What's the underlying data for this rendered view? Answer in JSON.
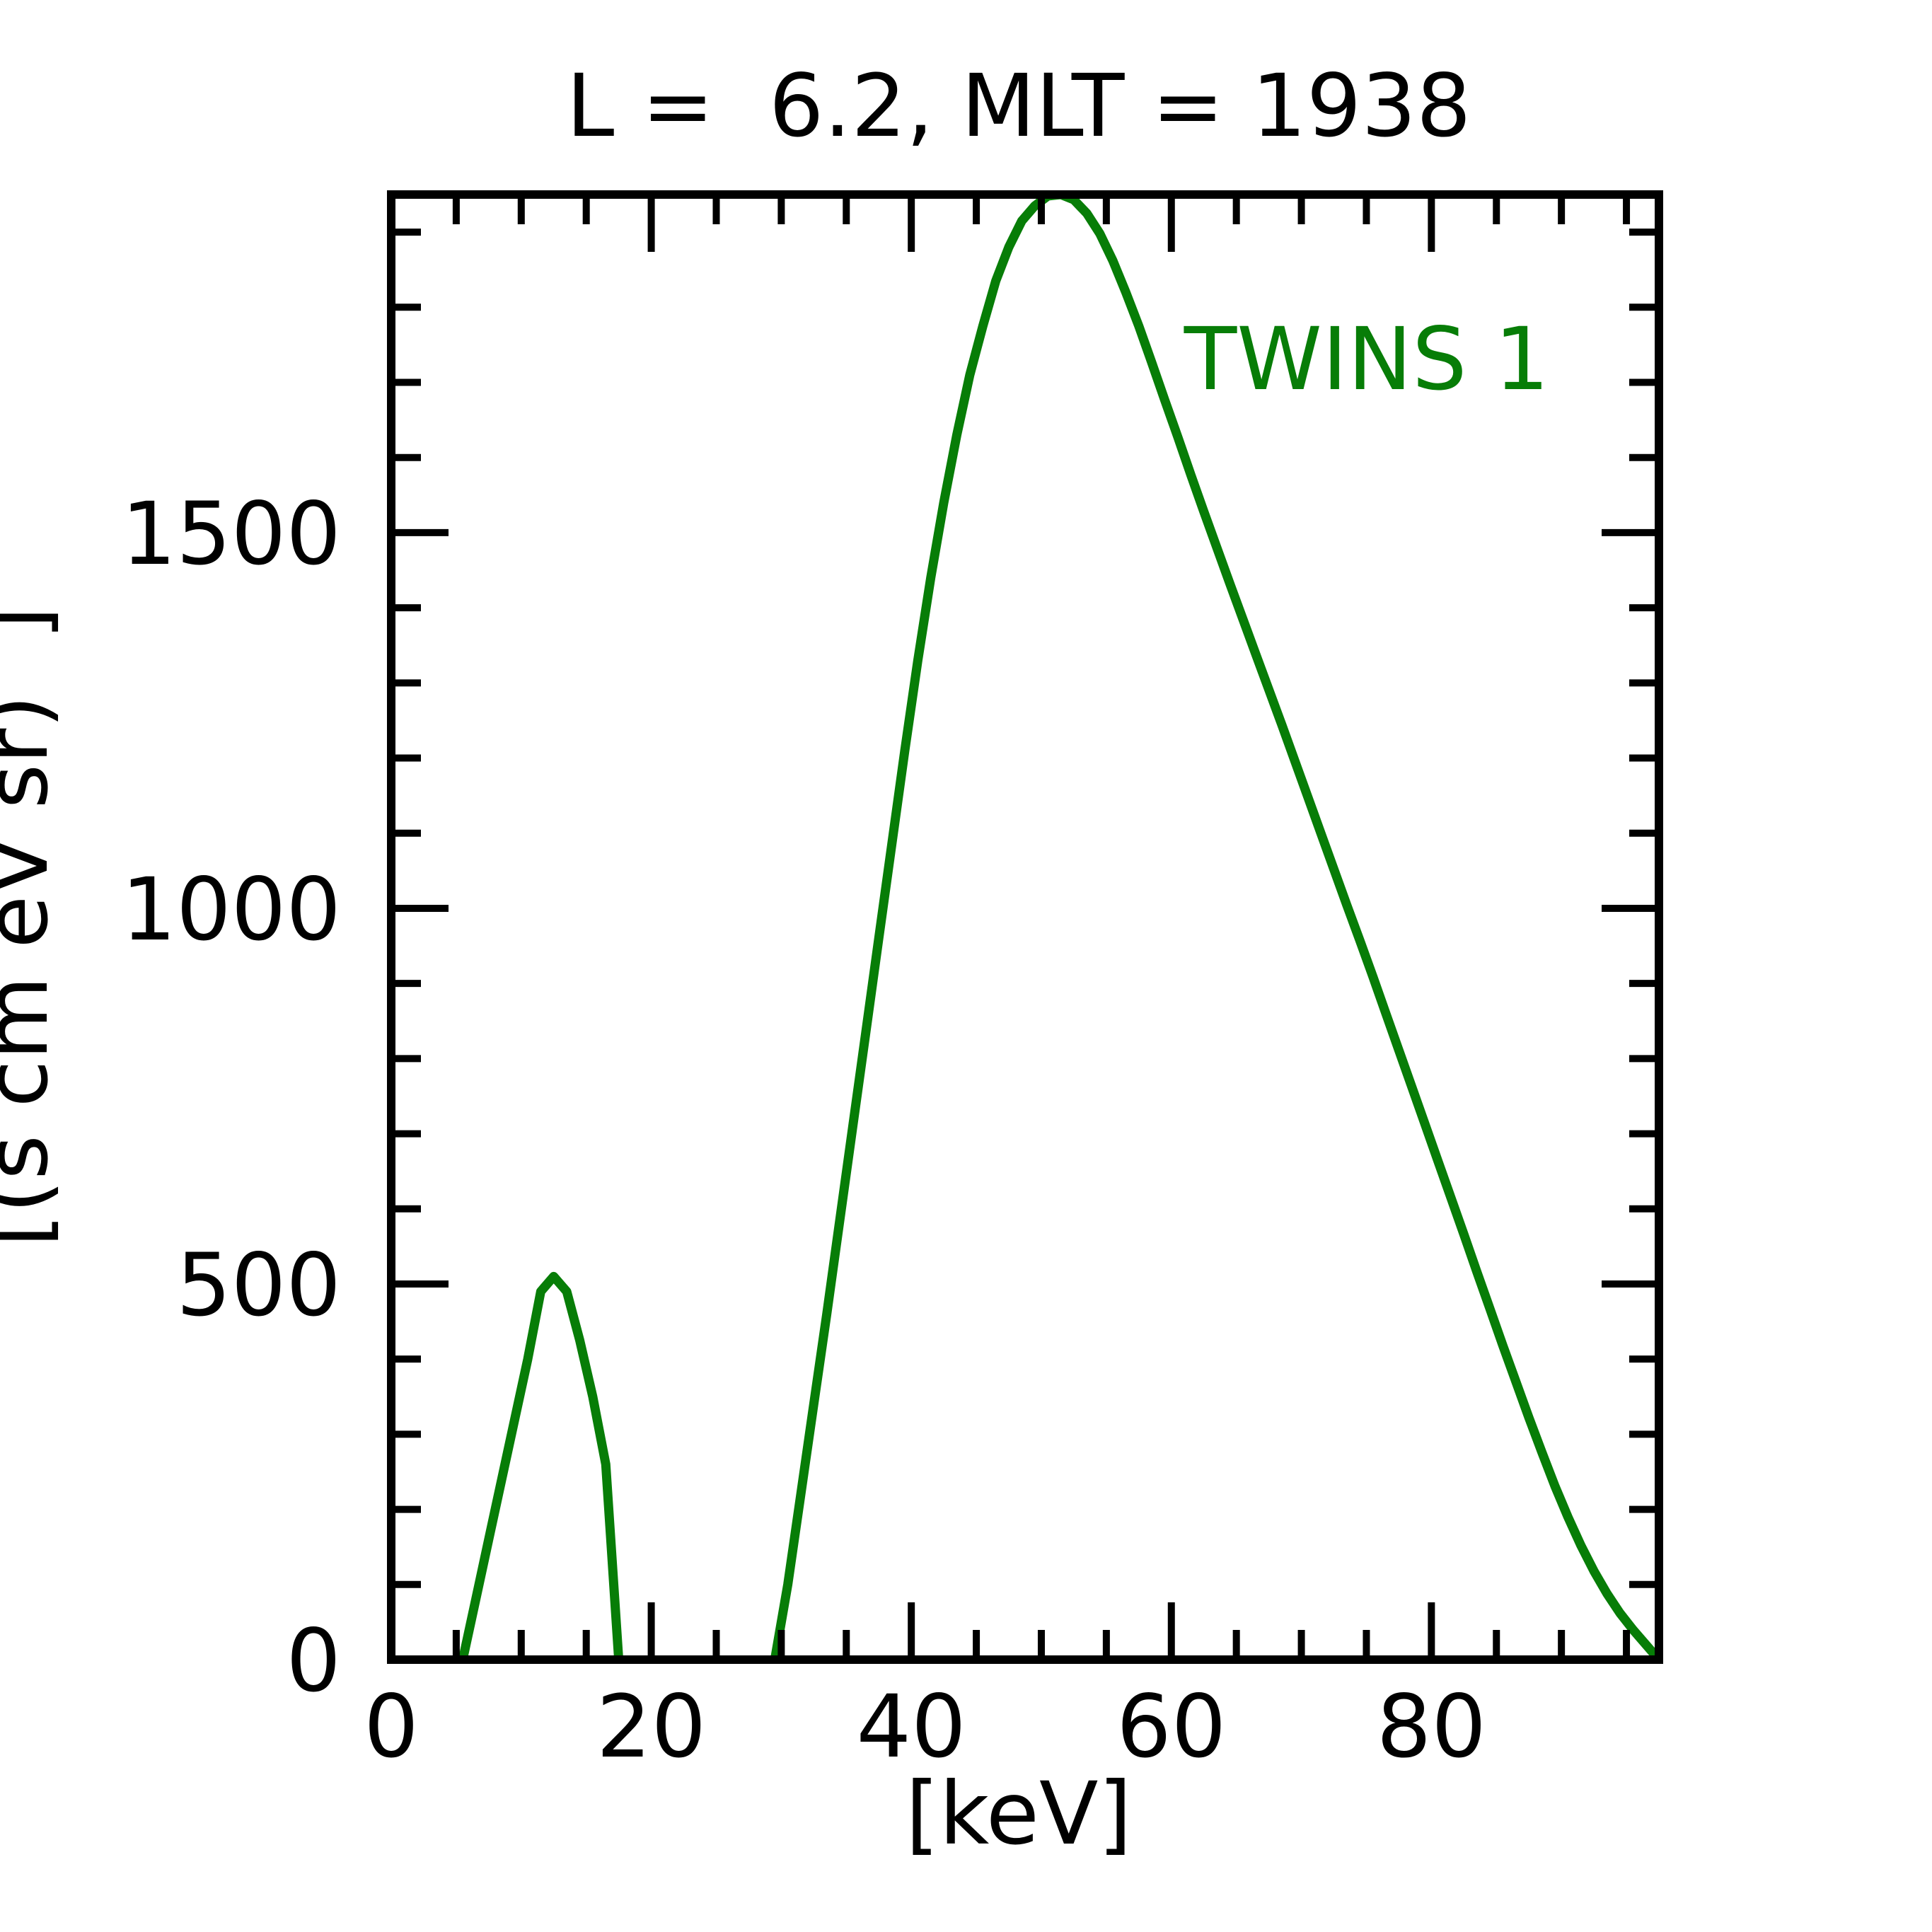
{
  "chart_data": {
    "type": "line",
    "title": "L =  6.2, MLT = 1938",
    "xlabel": "[keV]",
    "ylabel": "[(s cm eV sr)  ]",
    "xlim": [
      0,
      97.5
    ],
    "ylim": [
      0,
      1950
    ],
    "x_ticks": [
      0,
      20,
      40,
      60,
      80
    ],
    "y_ticks": [
      0,
      500,
      1000,
      1500
    ],
    "grid": false,
    "legend": "top-right",
    "colors": {
      "series": "#077d07",
      "axes": "#000000"
    },
    "series": [
      {
        "name": "TWINS 1",
        "segments": [
          [
            [
              5.5,
              0
            ],
            [
              6.5,
              80
            ],
            [
              7.5,
              160
            ],
            [
              8.5,
              240
            ],
            [
              9.5,
              320
            ],
            [
              10.5,
              400
            ],
            [
              11.5,
              490
            ],
            [
              12.5,
              510
            ],
            [
              13.5,
              490
            ],
            [
              14.5,
              425
            ],
            [
              15.5,
              350
            ],
            [
              16.5,
              260
            ],
            [
              17.5,
              0
            ]
          ],
          [
            [
              29.5,
              0
            ],
            [
              30.5,
              100
            ],
            [
              31.5,
              220
            ],
            [
              32.5,
              340
            ],
            [
              33.5,
              460
            ],
            [
              34.5,
              585
            ],
            [
              35.5,
              710
            ],
            [
              36.5,
              835
            ],
            [
              37.5,
              960
            ],
            [
              38.5,
              1085
            ],
            [
              39.5,
              1210
            ],
            [
              40.5,
              1330
            ],
            [
              41.5,
              1440
            ],
            [
              42.5,
              1540
            ],
            [
              43.5,
              1630
            ],
            [
              44.5,
              1710
            ],
            [
              45.5,
              1775
            ],
            [
              46.5,
              1835
            ],
            [
              47.5,
              1880
            ],
            [
              48.5,
              1915
            ],
            [
              49.5,
              1935
            ],
            [
              50.5,
              1948
            ],
            [
              51.5,
              1950
            ],
            [
              52.5,
              1943
            ],
            [
              53.5,
              1925
            ],
            [
              54.5,
              1898
            ],
            [
              55.5,
              1862
            ],
            [
              56.5,
              1820
            ],
            [
              57.5,
              1775
            ],
            [
              58.5,
              1726
            ],
            [
              59.5,
              1676
            ],
            [
              60.5,
              1627
            ],
            [
              61.5,
              1577
            ],
            [
              62.5,
              1528
            ],
            [
              63.5,
              1480
            ],
            [
              64.5,
              1432
            ],
            [
              65.5,
              1385
            ],
            [
              66.5,
              1338
            ],
            [
              67.5,
              1291
            ],
            [
              68.5,
              1244
            ],
            [
              69.5,
              1196
            ],
            [
              70.5,
              1148
            ],
            [
              71.5,
              1100
            ],
            [
              72.5,
              1052
            ],
            [
              73.5,
              1004
            ],
            [
              74.5,
              957
            ],
            [
              75.5,
              909
            ],
            [
              76.5,
              860
            ],
            [
              77.5,
              811
            ],
            [
              78.5,
              762
            ],
            [
              79.5,
              713
            ],
            [
              80.5,
              664
            ],
            [
              81.5,
              615
            ],
            [
              82.5,
              566
            ],
            [
              83.5,
              516
            ],
            [
              84.5,
              467
            ],
            [
              85.5,
              418
            ],
            [
              86.5,
              370
            ],
            [
              87.5,
              322
            ],
            [
              88.5,
              276
            ],
            [
              89.5,
              231
            ],
            [
              90.5,
              190
            ],
            [
              91.5,
              152
            ],
            [
              92.5,
              118
            ],
            [
              93.5,
              88
            ],
            [
              94.5,
              62
            ],
            [
              95.5,
              40
            ],
            [
              96.5,
              20
            ],
            [
              97.5,
              0
            ]
          ]
        ]
      }
    ]
  }
}
